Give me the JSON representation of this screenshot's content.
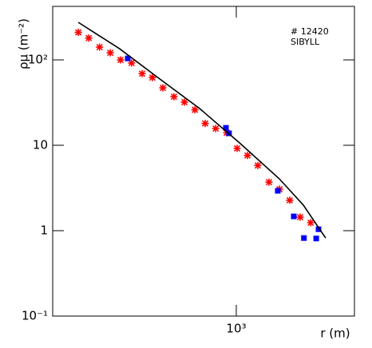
{
  "chart_data": {
    "type": "scatter",
    "x_label": "r (m)",
    "y_label": "ρμ (m⁻²)",
    "annotations": [
      "# 12420",
      "SIBYLL"
    ],
    "log_x": true,
    "log_y": true,
    "xlim": [
      266,
      2345
    ],
    "ylim": [
      0.1,
      423
    ],
    "xticks": [
      {
        "value": 1000,
        "label": "10³"
      }
    ],
    "yticks": [
      {
        "value": 0.1,
        "label": "10⁻¹"
      },
      1,
      10,
      {
        "value": 100,
        "label": "10²"
      }
    ],
    "series": [
      {
        "color": "#ff0000",
        "marker": "star",
        "x": [
          320,
          345,
          373,
          403,
          434,
          470,
          507,
          546,
          589,
          638,
          688,
          742,
          799,
          862,
          933,
          1006,
          1084,
          1168,
          1266,
          1366,
          1470,
          1585,
          1710
        ],
        "values": [
          210,
          180,
          141,
          121,
          100,
          92,
          69,
          62,
          47,
          37,
          32,
          26,
          18,
          15.7,
          14,
          9.2,
          7.6,
          5.8,
          3.7,
          3.06,
          2.27,
          1.44,
          1.24
        ]
      },
      {
        "color": "#0000ff",
        "marker": "square",
        "x": [
          457,
          928,
          949,
          1349,
          1514,
          1629,
          1780,
          1810
        ],
        "values": [
          104,
          16,
          13.8,
          2.93,
          1.47,
          0.82,
          0.81,
          1.04
        ]
      },
      {
        "color": "#000000",
        "marker": "line",
        "x": [
          320,
          431,
          575,
          767,
          1023,
          1364,
          1621,
          1905
        ],
        "values": [
          275,
          135,
          60,
          27,
          10.7,
          4.05,
          2.0,
          0.82
        ]
      }
    ]
  }
}
